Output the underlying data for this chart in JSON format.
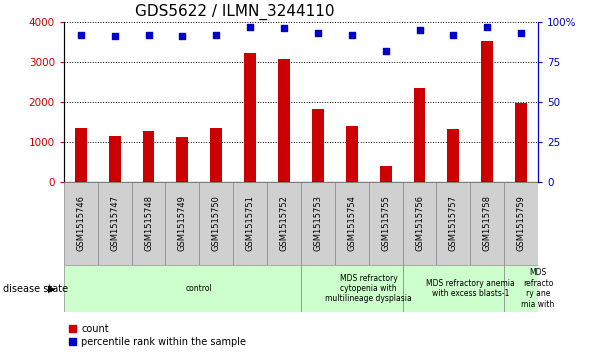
{
  "title": "GDS5622 / ILMN_3244110",
  "samples": [
    "GSM1515746",
    "GSM1515747",
    "GSM1515748",
    "GSM1515749",
    "GSM1515750",
    "GSM1515751",
    "GSM1515752",
    "GSM1515753",
    "GSM1515754",
    "GSM1515755",
    "GSM1515756",
    "GSM1515757",
    "GSM1515758",
    "GSM1515759"
  ],
  "counts": [
    1340,
    1150,
    1270,
    1120,
    1340,
    3220,
    3060,
    1820,
    1390,
    390,
    2340,
    1310,
    3520,
    1970
  ],
  "percentile_ranks": [
    92,
    91,
    92,
    91,
    92,
    97,
    96,
    93,
    92,
    82,
    95,
    92,
    97,
    93
  ],
  "bar_color": "#cc0000",
  "dot_color": "#0000cc",
  "ylim_left": [
    0,
    4000
  ],
  "ylim_right": [
    0,
    100
  ],
  "yticks_left": [
    0,
    1000,
    2000,
    3000,
    4000
  ],
  "ytick_labels_left": [
    "0",
    "1000",
    "2000",
    "3000",
    "4000"
  ],
  "yticks_right": [
    0,
    25,
    50,
    75,
    100
  ],
  "ytick_labels_right": [
    "0",
    "25",
    "50",
    "75",
    "100%"
  ],
  "disease_states": [
    {
      "label": "control",
      "start": 0,
      "end": 7,
      "color": "#ccffcc"
    },
    {
      "label": "MDS refractory\ncytopenia with\nmultilineage dysplasia",
      "start": 7,
      "end": 10,
      "color": "#ccffcc"
    },
    {
      "label": "MDS refractory anemia\nwith excess blasts-1",
      "start": 10,
      "end": 13,
      "color": "#ccffcc"
    },
    {
      "label": "MDS\nrefracto\nry ane\nmia with",
      "start": 13,
      "end": 14,
      "color": "#ccffcc"
    }
  ],
  "disease_state_label": "disease state",
  "legend_count_label": "count",
  "legend_percentile_label": "percentile rank within the sample",
  "title_fontsize": 11,
  "tick_fontsize": 7.5,
  "bar_width": 0.35,
  "background_color": "#ffffff",
  "plot_bg_color": "#ffffff",
  "grid_color": "#000000",
  "sample_bg_color": "#d0d0d0",
  "sample_label_fontsize": 6.0,
  "disease_fontsize": 5.5,
  "legend_fontsize": 7.0
}
